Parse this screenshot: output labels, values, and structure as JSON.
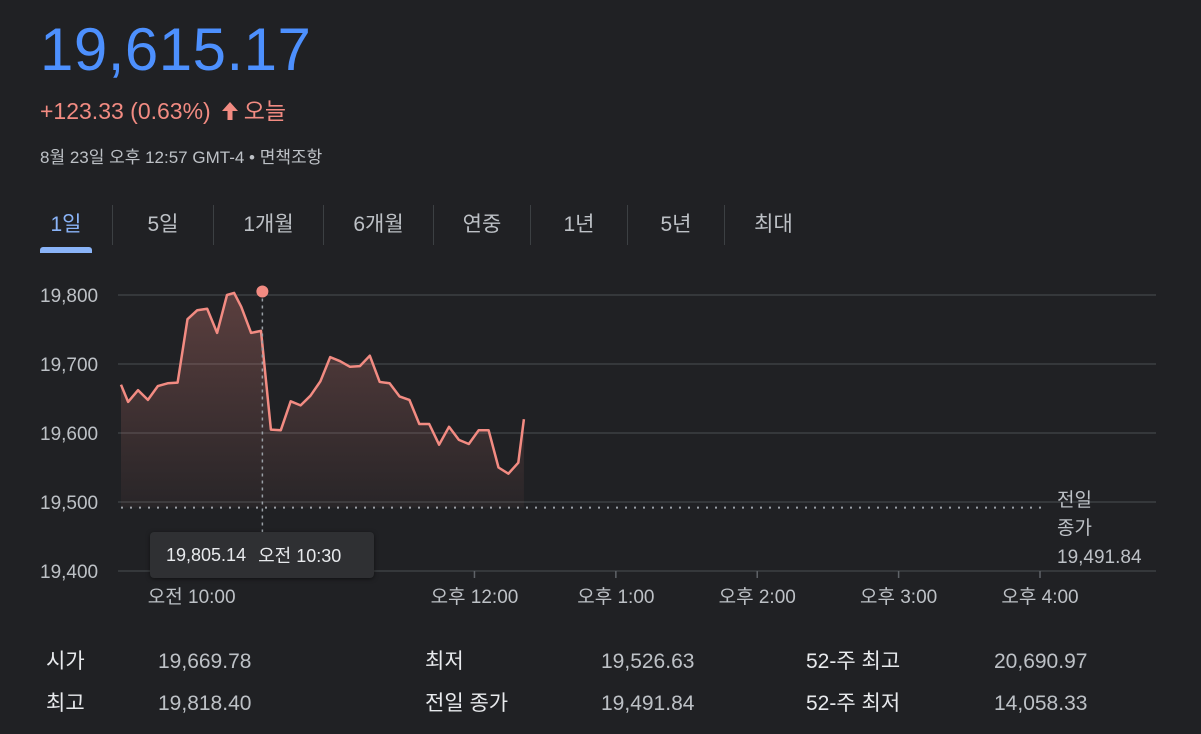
{
  "quote": {
    "price": "19,615.17",
    "change": "+123.33 (0.63%)",
    "change_period": "오늘",
    "timestamp": "8월 23일 오후 12:57 GMT-4 • 면책조항",
    "colors": {
      "price": "#4d90fe",
      "down_or_up": "#f28b82"
    }
  },
  "tabs": [
    {
      "label": "1일",
      "active": true
    },
    {
      "label": "5일",
      "active": false
    },
    {
      "label": "1개월",
      "active": false
    },
    {
      "label": "6개월",
      "active": false
    },
    {
      "label": "연중",
      "active": false
    },
    {
      "label": "1년",
      "active": false
    },
    {
      "label": "5년",
      "active": false
    },
    {
      "label": "최대",
      "active": false
    }
  ],
  "tooltip": {
    "value": "19,805.14",
    "time": "오전 10:30"
  },
  "chart_data": {
    "type": "area",
    "ylim": [
      19400,
      19800
    ],
    "y_ticks": [
      "19,800",
      "19,700",
      "19,600",
      "19,500",
      "19,400"
    ],
    "y_tick_values": [
      19800,
      19700,
      19600,
      19500,
      19400
    ],
    "x_range_hours": [
      9.5,
      16.0
    ],
    "x_ticks": [
      {
        "label": "오전 10:00",
        "hour": 10.0
      },
      {
        "label": "오후 12:00",
        "hour": 12.0
      },
      {
        "label": "오후 1:00",
        "hour": 13.0
      },
      {
        "label": "오후 2:00",
        "hour": 14.0
      },
      {
        "label": "오후 3:00",
        "hour": 15.0
      },
      {
        "label": "오후 4:00",
        "hour": 16.0
      }
    ],
    "previous_close": {
      "value": 19491.84,
      "label_line1": "전일",
      "label_line2": "종가",
      "label_value": "19,491.84"
    },
    "highlight": {
      "hour": 10.5,
      "value": 19805.14
    },
    "series": [
      {
        "color": "#f28b82",
        "points": [
          [
            9.5,
            19670
          ],
          [
            9.55,
            19645
          ],
          [
            9.62,
            19662
          ],
          [
            9.69,
            19648
          ],
          [
            9.76,
            19668
          ],
          [
            9.83,
            19672
          ],
          [
            9.9,
            19673
          ],
          [
            9.97,
            19765
          ],
          [
            10.04,
            19778
          ],
          [
            10.11,
            19780
          ],
          [
            10.18,
            19745
          ],
          [
            10.25,
            19800
          ],
          [
            10.3,
            19803
          ],
          [
            10.35,
            19783
          ],
          [
            10.42,
            19745
          ],
          [
            10.49,
            19748
          ],
          [
            10.56,
            19605
          ],
          [
            10.63,
            19604
          ],
          [
            10.7,
            19646
          ],
          [
            10.77,
            19640
          ],
          [
            10.84,
            19654
          ],
          [
            10.91,
            19675
          ],
          [
            10.98,
            19710
          ],
          [
            11.05,
            19704
          ],
          [
            11.12,
            19696
          ],
          [
            11.19,
            19697
          ],
          [
            11.26,
            19712
          ],
          [
            11.33,
            19674
          ],
          [
            11.4,
            19672
          ],
          [
            11.47,
            19653
          ],
          [
            11.54,
            19648
          ],
          [
            11.61,
            19613
          ],
          [
            11.68,
            19613
          ],
          [
            11.75,
            19583
          ],
          [
            11.82,
            19609
          ],
          [
            11.89,
            19590
          ],
          [
            11.96,
            19584
          ],
          [
            12.03,
            19604
          ],
          [
            12.1,
            19604
          ],
          [
            12.17,
            19550
          ],
          [
            12.24,
            19541
          ],
          [
            12.31,
            19557
          ],
          [
            12.35,
            19620
          ]
        ]
      }
    ]
  },
  "stats": [
    {
      "label": "시가",
      "value": "19,669.78"
    },
    {
      "label": "최고",
      "value": "19,818.40"
    },
    {
      "label": "최저",
      "value": "19,526.63"
    },
    {
      "label": "전일 종가",
      "value": "19,491.84"
    },
    {
      "label": "52-주 최고",
      "value": "20,690.97"
    },
    {
      "label": "52-주 최저",
      "value": "14,058.33"
    }
  ]
}
